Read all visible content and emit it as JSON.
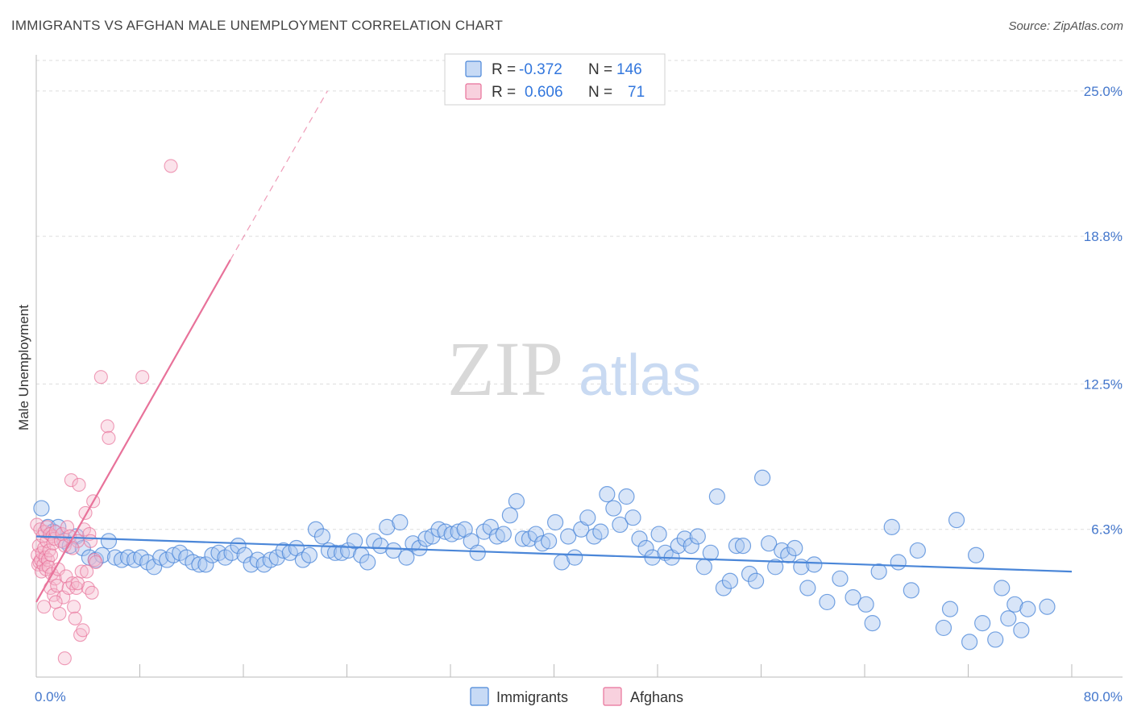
{
  "header": {
    "title": "IMMIGRANTS VS AFGHAN MALE UNEMPLOYMENT CORRELATION CHART",
    "source": "Source: ZipAtlas.com"
  },
  "watermark": {
    "zip": "ZIP",
    "atlas": "atlas"
  },
  "colors": {
    "blue": "#4a86d8",
    "blue_fill": "#a9c6ef",
    "pink": "#e8729a",
    "pink_fill": "#f5b8cc",
    "grid": "#dddddd",
    "tick_text": "#4477cc"
  },
  "legend": {
    "rows": [
      {
        "series": "Immigrants",
        "r_label": "R =",
        "r_value": "-0.372",
        "n_label": "N =",
        "n_value": "146"
      },
      {
        "series": "Afghans",
        "r_label": "R =",
        "r_value": "0.606",
        "n_label": "N =",
        "n_value": "71"
      }
    ]
  },
  "chart_data": {
    "type": "scatter",
    "title": "IMMIGRANTS VS AFGHAN MALE UNEMPLOYMENT CORRELATION CHART",
    "xlabel": "",
    "ylabel": "Male Unemployment",
    "xlim": [
      0,
      80
    ],
    "ylim": [
      0,
      26.3
    ],
    "x_tick_labels": [
      "0.0%",
      "80.0%"
    ],
    "y_ticks": [
      6.3,
      12.5,
      18.8,
      25.0
    ],
    "y_tick_labels": [
      "6.3%",
      "12.5%",
      "18.8%",
      "25.0%"
    ],
    "grid": true,
    "legend_entries": [
      "Immigrants",
      "Afghans"
    ],
    "series": [
      {
        "name": "Immigrants",
        "trend": {
          "x": [
            0,
            80
          ],
          "y": [
            6.0,
            4.5
          ],
          "style": "solid"
        },
        "points": [
          [
            0.4,
            7.2
          ],
          [
            0.9,
            6.4
          ],
          [
            1.3,
            6.2
          ],
          [
            1.7,
            6.4
          ],
          [
            2.2,
            5.8
          ],
          [
            2.6,
            5.6
          ],
          [
            3.1,
            6.0
          ],
          [
            3.6,
            5.5
          ],
          [
            4.1,
            5.1
          ],
          [
            4.6,
            5.0
          ],
          [
            5.1,
            5.2
          ],
          [
            5.6,
            5.8
          ],
          [
            6.1,
            5.1
          ],
          [
            6.6,
            5.0
          ],
          [
            7.1,
            5.1
          ],
          [
            7.6,
            5.0
          ],
          [
            8.1,
            5.1
          ],
          [
            8.6,
            4.9
          ],
          [
            9.1,
            4.7
          ],
          [
            9.6,
            5.1
          ],
          [
            10.1,
            5.0
          ],
          [
            10.6,
            5.2
          ],
          [
            11.1,
            5.3
          ],
          [
            11.6,
            5.1
          ],
          [
            12.1,
            4.9
          ],
          [
            12.6,
            4.8
          ],
          [
            13.1,
            4.8
          ],
          [
            13.6,
            5.2
          ],
          [
            14.1,
            5.3
          ],
          [
            14.6,
            5.1
          ],
          [
            15.1,
            5.3
          ],
          [
            15.6,
            5.6
          ],
          [
            16.1,
            5.2
          ],
          [
            16.6,
            4.8
          ],
          [
            17.1,
            5.0
          ],
          [
            17.6,
            4.8
          ],
          [
            18.1,
            5.0
          ],
          [
            18.6,
            5.1
          ],
          [
            19.1,
            5.4
          ],
          [
            19.6,
            5.3
          ],
          [
            20.1,
            5.5
          ],
          [
            20.6,
            5.0
          ],
          [
            21.1,
            5.2
          ],
          [
            21.6,
            6.3
          ],
          [
            22.1,
            6.0
          ],
          [
            22.6,
            5.4
          ],
          [
            23.1,
            5.3
          ],
          [
            23.6,
            5.3
          ],
          [
            24.1,
            5.4
          ],
          [
            24.6,
            5.8
          ],
          [
            25.1,
            5.2
          ],
          [
            25.6,
            4.9
          ],
          [
            26.1,
            5.8
          ],
          [
            26.6,
            5.6
          ],
          [
            27.1,
            6.4
          ],
          [
            27.6,
            5.4
          ],
          [
            28.1,
            6.6
          ],
          [
            28.6,
            5.1
          ],
          [
            29.1,
            5.7
          ],
          [
            29.6,
            5.5
          ],
          [
            30.1,
            5.9
          ],
          [
            30.6,
            6.0
          ],
          [
            31.1,
            6.3
          ],
          [
            31.6,
            6.2
          ],
          [
            32.1,
            6.1
          ],
          [
            32.6,
            6.2
          ],
          [
            33.1,
            6.3
          ],
          [
            33.6,
            5.8
          ],
          [
            34.1,
            5.3
          ],
          [
            34.6,
            6.2
          ],
          [
            35.1,
            6.4
          ],
          [
            35.6,
            6.0
          ],
          [
            36.1,
            6.1
          ],
          [
            36.6,
            6.9
          ],
          [
            37.1,
            7.5
          ],
          [
            37.6,
            5.9
          ],
          [
            38.1,
            5.9
          ],
          [
            38.6,
            6.1
          ],
          [
            39.1,
            5.7
          ],
          [
            39.6,
            5.8
          ],
          [
            40.1,
            6.6
          ],
          [
            40.6,
            4.9
          ],
          [
            41.1,
            6.0
          ],
          [
            41.6,
            5.1
          ],
          [
            42.1,
            6.3
          ],
          [
            42.6,
            6.8
          ],
          [
            43.1,
            6.0
          ],
          [
            43.6,
            6.2
          ],
          [
            44.1,
            7.8
          ],
          [
            44.6,
            7.2
          ],
          [
            45.1,
            6.5
          ],
          [
            45.6,
            7.7
          ],
          [
            46.1,
            6.8
          ],
          [
            46.6,
            5.9
          ],
          [
            47.1,
            5.5
          ],
          [
            47.6,
            5.1
          ],
          [
            48.1,
            6.1
          ],
          [
            48.6,
            5.3
          ],
          [
            49.1,
            5.1
          ],
          [
            49.6,
            5.6
          ],
          [
            50.1,
            5.9
          ],
          [
            50.6,
            5.6
          ],
          [
            51.1,
            6.0
          ],
          [
            51.6,
            4.7
          ],
          [
            52.1,
            5.3
          ],
          [
            52.6,
            7.7
          ],
          [
            53.1,
            3.8
          ],
          [
            53.6,
            4.1
          ],
          [
            54.1,
            5.6
          ],
          [
            54.6,
            5.6
          ],
          [
            55.1,
            4.4
          ],
          [
            55.6,
            4.1
          ],
          [
            56.1,
            8.5
          ],
          [
            56.6,
            5.7
          ],
          [
            57.1,
            4.7
          ],
          [
            57.6,
            5.4
          ],
          [
            58.1,
            5.2
          ],
          [
            58.6,
            5.5
          ],
          [
            59.1,
            4.7
          ],
          [
            59.6,
            3.8
          ],
          [
            60.1,
            4.8
          ],
          [
            61.1,
            3.2
          ],
          [
            62.1,
            4.2
          ],
          [
            63.1,
            3.4
          ],
          [
            64.1,
            3.1
          ],
          [
            64.6,
            2.3
          ],
          [
            65.1,
            4.5
          ],
          [
            66.1,
            6.4
          ],
          [
            66.6,
            4.9
          ],
          [
            67.6,
            3.7
          ],
          [
            68.1,
            5.4
          ],
          [
            70.1,
            2.1
          ],
          [
            70.6,
            2.9
          ],
          [
            71.1,
            6.7
          ],
          [
            72.1,
            1.5
          ],
          [
            72.6,
            5.2
          ],
          [
            73.1,
            2.3
          ],
          [
            74.1,
            1.6
          ],
          [
            74.6,
            3.8
          ],
          [
            75.1,
            2.5
          ],
          [
            75.6,
            3.1
          ],
          [
            76.1,
            2.0
          ],
          [
            76.6,
            2.9
          ],
          [
            78.1,
            3.0
          ]
        ]
      },
      {
        "name": "Afghans",
        "trend": {
          "x": [
            0.0,
            15.0,
            22.5
          ],
          "y": [
            3.2,
            17.8,
            25.0
          ],
          "style": "solid-then-dashed"
        },
        "points": [
          [
            0.05,
            6.5
          ],
          [
            0.1,
            5.2
          ],
          [
            0.15,
            4.8
          ],
          [
            0.2,
            5.6
          ],
          [
            0.25,
            4.9
          ],
          [
            0.3,
            6.3
          ],
          [
            0.35,
            5.0
          ],
          [
            0.4,
            4.5
          ],
          [
            0.45,
            5.3
          ],
          [
            0.5,
            6.0
          ],
          [
            0.55,
            4.8
          ],
          [
            0.6,
            5.5
          ],
          [
            0.65,
            6.2
          ],
          [
            0.7,
            5.1
          ],
          [
            0.75,
            4.6
          ],
          [
            0.8,
            5.8
          ],
          [
            0.85,
            6.4
          ],
          [
            0.9,
            5.0
          ],
          [
            0.95,
            4.7
          ],
          [
            1.0,
            5.4
          ],
          [
            1.05,
            6.1
          ],
          [
            1.1,
            3.8
          ],
          [
            1.15,
            5.2
          ],
          [
            1.2,
            4.4
          ],
          [
            1.25,
            6.0
          ],
          [
            1.3,
            5.7
          ],
          [
            1.35,
            3.5
          ],
          [
            1.4,
            5.9
          ],
          [
            1.45,
            4.2
          ],
          [
            1.5,
            6.2
          ],
          [
            1.6,
            3.9
          ],
          [
            1.7,
            4.6
          ],
          [
            1.8,
            2.7
          ],
          [
            1.9,
            5.8
          ],
          [
            2.0,
            6.1
          ],
          [
            2.1,
            3.4
          ],
          [
            2.2,
            5.6
          ],
          [
            2.3,
            4.3
          ],
          [
            2.4,
            6.4
          ],
          [
            2.5,
            3.8
          ],
          [
            2.6,
            6.0
          ],
          [
            2.7,
            8.4
          ],
          [
            2.8,
            4.0
          ],
          [
            2.9,
            3.0
          ],
          [
            3.0,
            2.5
          ],
          [
            3.1,
            3.8
          ],
          [
            3.2,
            5.8
          ],
          [
            3.3,
            8.2
          ],
          [
            3.4,
            1.8
          ],
          [
            3.5,
            4.5
          ],
          [
            3.6,
            2.0
          ],
          [
            3.7,
            6.3
          ],
          [
            3.8,
            7.0
          ],
          [
            3.9,
            4.5
          ],
          [
            4.0,
            3.8
          ],
          [
            4.1,
            6.1
          ],
          [
            4.2,
            5.8
          ],
          [
            4.4,
            7.5
          ],
          [
            4.5,
            5.0
          ],
          [
            4.6,
            4.9
          ],
          [
            5.0,
            12.8
          ],
          [
            5.5,
            10.7
          ],
          [
            5.6,
            10.2
          ],
          [
            8.2,
            12.8
          ],
          [
            10.4,
            21.8
          ],
          [
            2.2,
            0.8
          ],
          [
            1.5,
            3.2
          ],
          [
            2.8,
            5.5
          ],
          [
            3.2,
            4.0
          ],
          [
            4.3,
            3.6
          ],
          [
            0.6,
            3.0
          ]
        ]
      }
    ]
  }
}
